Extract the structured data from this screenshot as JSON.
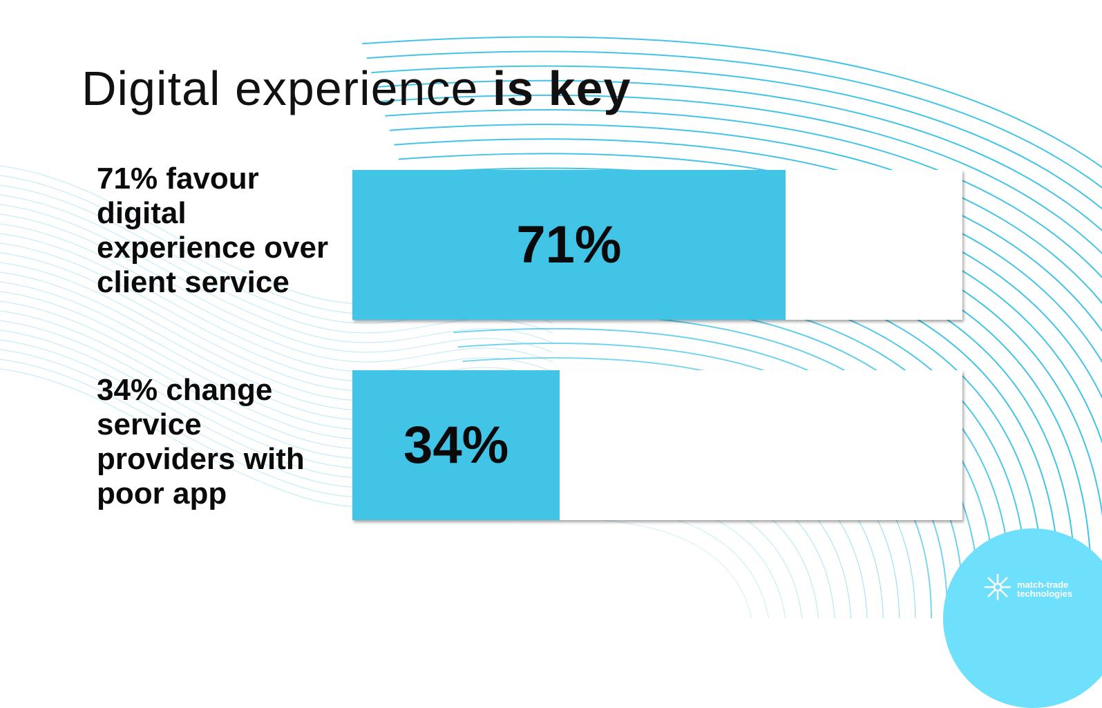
{
  "title": {
    "light": "Digital experience ",
    "bold": "is key"
  },
  "chart_data": {
    "type": "bar",
    "orientation": "horizontal",
    "categories": [
      "71% favour digital experience over client service",
      "34% change service providers with poor app"
    ],
    "values": [
      71,
      34
    ],
    "data_labels": [
      "71%",
      "34%"
    ],
    "xlim": [
      0,
      100
    ],
    "grid": false,
    "colors": {
      "fill": "#42c4e6",
      "track": "#ffffff"
    }
  },
  "logo": {
    "text_line1": "match-trade",
    "text_line2": "technologies",
    "color": "#6ee0fc"
  }
}
